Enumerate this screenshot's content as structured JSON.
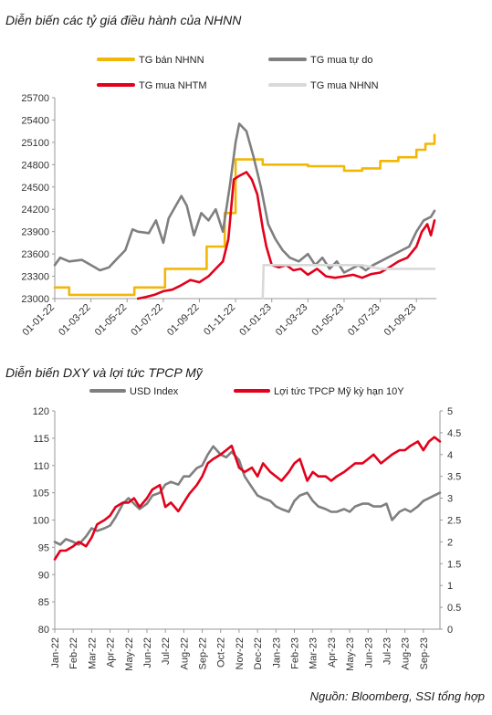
{
  "title1": "Diễn biến các tỷ giá điều hành của NHNN",
  "title2": "Diễn biến DXY và lợi tức TPCP Mỹ",
  "source": "Nguồn: Bloomberg, SSI tổng hợp",
  "chart_data": [
    {
      "type": "line",
      "title": "Diễn biến các tỷ giá điều hành của NHNN",
      "ylim": [
        23000,
        25700
      ],
      "yticks": [
        23000,
        23300,
        23600,
        23900,
        24200,
        24500,
        24800,
        25100,
        25400,
        25700
      ],
      "xlim": [
        0,
        21.1
      ],
      "xticks": [
        0,
        2,
        4,
        6,
        8,
        10,
        12,
        14,
        16,
        18,
        20
      ],
      "xtick_labels": [
        "01-01-22",
        "01-03-22",
        "01-05-22",
        "01-07-22",
        "01-09-22",
        "01-11-22",
        "01-01-23",
        "01-03-23",
        "01-05-23",
        "01-07-23",
        "01-09-23"
      ],
      "legend_placement": "top",
      "series": [
        {
          "name": "TG bán NHNN",
          "color": "#f2b705",
          "step": true,
          "x": [
            0,
            0.8,
            4.4,
            6.1,
            8.4,
            9.4,
            10.0,
            11.5,
            14.0,
            15.5,
            16.0,
            17.0,
            18.0,
            19.0,
            20.0,
            20.5,
            21.0
          ],
          "y": [
            23150,
            23050,
            23150,
            23400,
            23700,
            24150,
            24870,
            24800,
            24780,
            24780,
            24720,
            24750,
            24850,
            24900,
            25000,
            25080,
            25200
          ]
        },
        {
          "name": "TG mua tự do",
          "color": "#7f7f7f",
          "x": [
            0,
            0.3,
            0.8,
            1.5,
            2.0,
            2.5,
            3.0,
            3.5,
            3.9,
            4.3,
            4.6,
            5.2,
            5.6,
            6.0,
            6.3,
            6.7,
            7.0,
            7.3,
            7.7,
            8.1,
            8.5,
            8.9,
            9.3,
            9.7,
            10.0,
            10.2,
            10.6,
            11.0,
            11.4,
            11.8,
            12.2,
            12.6,
            13.0,
            13.5,
            14.0,
            14.4,
            14.8,
            15.2,
            15.6,
            16.0,
            16.4,
            16.8,
            17.2,
            17.6,
            18.0,
            18.4,
            18.8,
            19.2,
            19.6,
            20.0,
            20.4,
            20.8,
            21.0
          ],
          "y": [
            23450,
            23550,
            23500,
            23520,
            23450,
            23380,
            23420,
            23550,
            23650,
            23930,
            23900,
            23880,
            24050,
            23750,
            24080,
            24250,
            24380,
            24250,
            23850,
            24150,
            24050,
            24200,
            23900,
            24550,
            25100,
            25350,
            25250,
            24900,
            24500,
            24000,
            23800,
            23650,
            23550,
            23500,
            23600,
            23450,
            23550,
            23400,
            23500,
            23350,
            23400,
            23450,
            23380,
            23450,
            23500,
            23550,
            23600,
            23650,
            23700,
            23900,
            24050,
            24100,
            24180
          ]
        },
        {
          "name": "TG mua NHTM",
          "color": "#e3001b",
          "x": [
            4.6,
            5.0,
            5.5,
            6.0,
            6.5,
            7.0,
            7.5,
            8.0,
            8.5,
            8.9,
            9.3,
            9.6,
            9.9,
            10.2,
            10.6,
            10.9,
            11.2,
            11.5,
            11.7,
            12.0,
            12.4,
            12.8,
            13.2,
            13.6,
            14.0,
            14.5,
            15.0,
            15.5,
            16.0,
            16.5,
            17.0,
            17.5,
            18.0,
            18.5,
            19.0,
            19.5,
            20.0,
            20.3,
            20.6,
            20.8,
            21.0
          ],
          "y": [
            23000,
            23020,
            23050,
            23100,
            23120,
            23180,
            23250,
            23220,
            23300,
            23400,
            23500,
            23800,
            24600,
            24650,
            24700,
            24600,
            24400,
            23950,
            23700,
            23450,
            23420,
            23450,
            23380,
            23400,
            23320,
            23400,
            23300,
            23280,
            23300,
            23320,
            23280,
            23330,
            23350,
            23420,
            23500,
            23550,
            23700,
            23900,
            24000,
            23850,
            24050
          ]
        },
        {
          "name": "TG mua NHNN",
          "color": "#d9d9d9",
          "x": [
            11.5,
            11.55,
            12.0,
            13.0,
            14.0,
            15.0,
            16.0,
            17.0,
            18.0,
            19.0,
            20.0,
            21.0
          ],
          "y": [
            23000,
            23450,
            23450,
            23450,
            23450,
            23450,
            23450,
            23450,
            23400,
            23400,
            23400,
            23400
          ]
        }
      ]
    },
    {
      "type": "line",
      "title": "Diễn biến DXY và lợi tức TPCP Mỹ",
      "ylim": [
        80,
        120
      ],
      "yticks": [
        80,
        85,
        90,
        95,
        100,
        105,
        110,
        115,
        120
      ],
      "y2lim": [
        0,
        5
      ],
      "y2ticks": [
        "0",
        "0.5",
        "1",
        "1.5",
        "2",
        "2.5",
        "3",
        "3.5",
        "4",
        "4.5",
        "5"
      ],
      "xlim": [
        0,
        20.9
      ],
      "xticks": [
        0,
        1,
        2,
        3,
        4,
        5,
        6,
        7,
        8,
        9,
        10,
        11,
        12,
        13,
        14,
        15,
        16,
        17,
        18,
        19,
        20
      ],
      "xtick_labels": [
        "Jan-22",
        "Feb-22",
        "Mar-22",
        "Apr-22",
        "May-22",
        "Jun-22",
        "Jul-22",
        "Aug-22",
        "Sep-22",
        "Oct-22",
        "Nov-22",
        "Dec-22",
        "Jan-23",
        "Feb-23",
        "Mar-23",
        "Apr-23",
        "May-23",
        "Jun-23",
        "Jul-23",
        "Aug-23",
        "Sep-23"
      ],
      "legend_placement": "top",
      "series": [
        {
          "name": "USD Index",
          "color": "#7f7f7f",
          "axis": "left",
          "x": [
            0,
            0.3,
            0.6,
            1.0,
            1.3,
            1.7,
            2.0,
            2.3,
            2.7,
            3.0,
            3.3,
            3.7,
            4.0,
            4.3,
            4.6,
            5.0,
            5.3,
            5.7,
            6.0,
            6.3,
            6.7,
            7.0,
            7.3,
            7.7,
            8.0,
            8.3,
            8.6,
            9.0,
            9.3,
            9.6,
            10.0,
            10.3,
            10.7,
            11.0,
            11.3,
            11.7,
            12.0,
            12.3,
            12.7,
            13.0,
            13.3,
            13.7,
            14.0,
            14.3,
            14.7,
            15.0,
            15.3,
            15.7,
            16.0,
            16.3,
            16.7,
            17.0,
            17.3,
            17.7,
            18.0,
            18.3,
            18.7,
            19.0,
            19.3,
            19.7,
            20.0,
            20.3,
            20.6,
            20.9
          ],
          "y": [
            96,
            95.5,
            96.5,
            96,
            95.5,
            97,
            98.5,
            98,
            98.5,
            99,
            100.5,
            103,
            104,
            103,
            102,
            103,
            104.5,
            105,
            106.5,
            107,
            106.5,
            108,
            108,
            109.5,
            110,
            112,
            113.5,
            112,
            111.5,
            112.5,
            111,
            108,
            106,
            104.5,
            104,
            103.5,
            102.5,
            102,
            101.5,
            103.5,
            104.5,
            105,
            103.5,
            102.5,
            102,
            101.5,
            101.5,
            102,
            101.5,
            102.5,
            103,
            103,
            102.5,
            102.5,
            103,
            100,
            101.5,
            102,
            101.5,
            102.5,
            103.5,
            104,
            104.5,
            105
          ]
        },
        {
          "name": "Lợi tức TPCP Mỹ kỳ hạn 10Y",
          "color": "#e3001b",
          "axis": "right",
          "x": [
            0,
            0.3,
            0.6,
            1.0,
            1.3,
            1.7,
            2.0,
            2.3,
            2.7,
            3.0,
            3.3,
            3.7,
            4.0,
            4.3,
            4.6,
            5.0,
            5.3,
            5.7,
            6.0,
            6.3,
            6.7,
            7.0,
            7.3,
            7.7,
            8.0,
            8.3,
            8.6,
            9.0,
            9.3,
            9.6,
            10.0,
            10.3,
            10.7,
            11.0,
            11.3,
            11.7,
            12.0,
            12.3,
            12.7,
            13.0,
            13.3,
            13.7,
            14.0,
            14.3,
            14.7,
            15.0,
            15.3,
            15.7,
            16.0,
            16.3,
            16.7,
            17.0,
            17.3,
            17.7,
            18.0,
            18.3,
            18.7,
            19.0,
            19.3,
            19.7,
            20.0,
            20.3,
            20.6,
            20.9
          ],
          "y": [
            1.6,
            1.8,
            1.8,
            1.9,
            2.0,
            1.9,
            2.1,
            2.4,
            2.5,
            2.6,
            2.8,
            2.9,
            2.9,
            3.0,
            2.8,
            3.0,
            3.2,
            3.3,
            2.8,
            2.9,
            2.7,
            2.9,
            3.1,
            3.3,
            3.5,
            3.8,
            3.9,
            4.0,
            4.1,
            4.2,
            3.7,
            3.6,
            3.7,
            3.5,
            3.8,
            3.6,
            3.5,
            3.4,
            3.6,
            3.8,
            3.9,
            3.4,
            3.6,
            3.5,
            3.5,
            3.4,
            3.5,
            3.6,
            3.7,
            3.8,
            3.8,
            3.9,
            4.0,
            3.8,
            3.9,
            4.0,
            4.1,
            4.1,
            4.2,
            4.3,
            4.1,
            4.3,
            4.4,
            4.3
          ]
        }
      ]
    }
  ]
}
